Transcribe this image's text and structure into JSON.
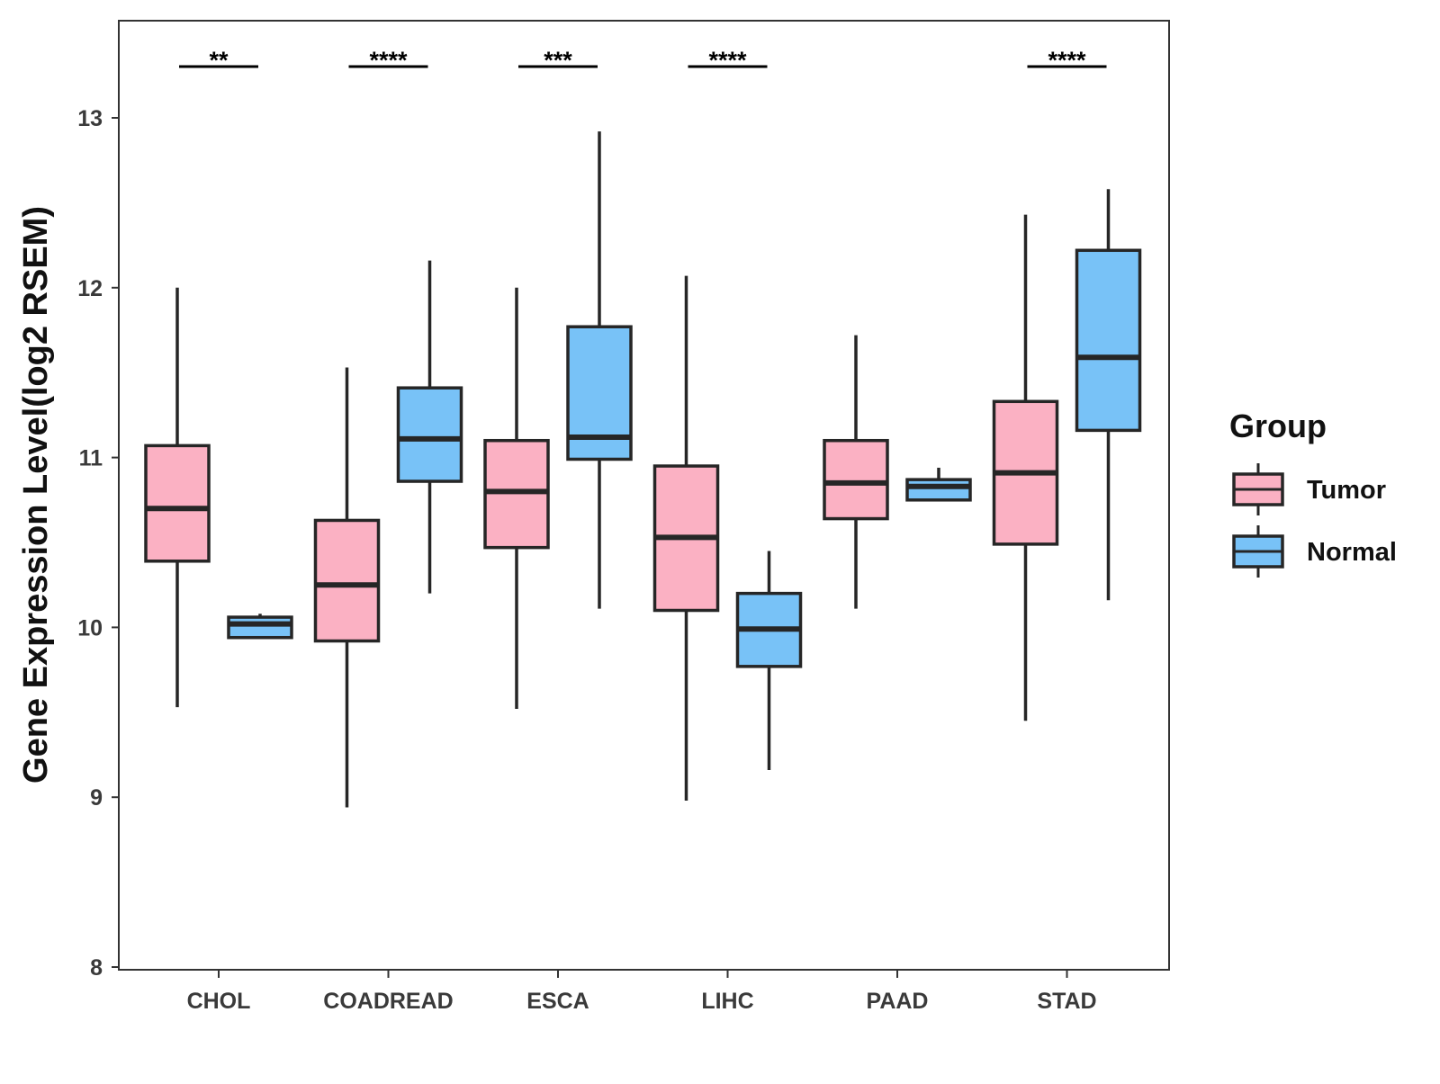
{
  "chart_data": {
    "type": "boxplot",
    "title": "",
    "xlabel": "",
    "ylabel": "Gene Expression Level(log2 RSEM)",
    "ylim": [
      8,
      13.6
    ],
    "yticks": [
      8,
      9,
      10,
      11,
      12,
      13
    ],
    "grid": false,
    "categories": [
      "CHOL",
      "COADREAD",
      "ESCA",
      "LIHC",
      "PAAD",
      "STAD"
    ],
    "legend": {
      "title": "Group",
      "position": "right",
      "entries": [
        {
          "name": "Tumor",
          "color": "#FBB1C3"
        },
        {
          "name": "Normal",
          "color": "#78C2F7"
        }
      ]
    },
    "series": [
      {
        "name": "Tumor",
        "color": "#FBB1C3",
        "boxes": [
          {
            "whisker_low": 9.53,
            "q1": 10.39,
            "median": 10.7,
            "q3": 11.07,
            "whisker_high": 12.0
          },
          {
            "whisker_low": 8.94,
            "q1": 9.92,
            "median": 10.25,
            "q3": 10.63,
            "whisker_high": 11.53
          },
          {
            "whisker_low": 9.52,
            "q1": 10.47,
            "median": 10.8,
            "q3": 11.1,
            "whisker_high": 12.0
          },
          {
            "whisker_low": 8.98,
            "q1": 10.1,
            "median": 10.53,
            "q3": 10.95,
            "whisker_high": 12.07
          },
          {
            "whisker_low": 10.11,
            "q1": 10.64,
            "median": 10.85,
            "q3": 11.1,
            "whisker_high": 11.72
          },
          {
            "whisker_low": 9.45,
            "q1": 10.49,
            "median": 10.91,
            "q3": 11.33,
            "whisker_high": 12.43
          }
        ]
      },
      {
        "name": "Normal",
        "color": "#78C2F7",
        "boxes": [
          {
            "whisker_low": 9.94,
            "q1": 9.94,
            "median": 10.02,
            "q3": 10.06,
            "whisker_high": 10.08
          },
          {
            "whisker_low": 10.2,
            "q1": 10.86,
            "median": 11.11,
            "q3": 11.41,
            "whisker_high": 12.16
          },
          {
            "whisker_low": 10.11,
            "q1": 10.99,
            "median": 11.12,
            "q3": 11.77,
            "whisker_high": 12.92
          },
          {
            "whisker_low": 9.16,
            "q1": 9.77,
            "median": 9.99,
            "q3": 10.2,
            "whisker_high": 10.45
          },
          {
            "whisker_low": 10.75,
            "q1": 10.75,
            "median": 10.83,
            "q3": 10.87,
            "whisker_high": 10.94
          },
          {
            "whisker_low": 10.16,
            "q1": 11.16,
            "median": 11.59,
            "q3": 12.22,
            "whisker_high": 12.58
          }
        ]
      }
    ],
    "annotations": [
      {
        "category": "CHOL",
        "label": "**"
      },
      {
        "category": "COADREAD",
        "label": "****"
      },
      {
        "category": "ESCA",
        "label": "***"
      },
      {
        "category": "LIHC",
        "label": "****"
      },
      {
        "category": "PAAD",
        "label": ""
      },
      {
        "category": "STAD",
        "label": "****"
      }
    ]
  }
}
